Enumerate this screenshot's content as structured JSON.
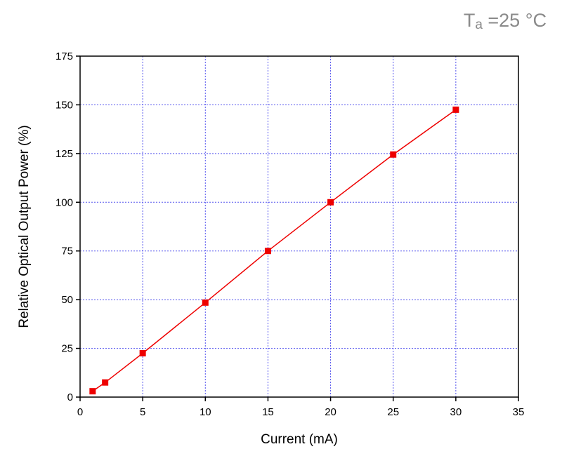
{
  "chart_data": {
    "type": "line",
    "annotation": [
      "T",
      "a",
      " =25 °C"
    ],
    "x_label": "Current (mA)",
    "y_label": "Relative Optical Output Power (%)",
    "x": [
      1,
      2,
      5,
      10,
      15,
      20,
      25,
      30
    ],
    "series": [
      {
        "color": "#ee0000",
        "values": [
          3,
          7.5,
          22.5,
          48.5,
          75,
          100,
          124.5,
          147.5
        ]
      }
    ],
    "xlim": [
      0,
      35
    ],
    "xticks": [
      0,
      5,
      10,
      15,
      20,
      25,
      30,
      35
    ],
    "ylim": [
      0,
      175
    ],
    "yticks": [
      0,
      25,
      50,
      75,
      100,
      125,
      150,
      175
    ],
    "grid": true,
    "grid_color": "#5555ee",
    "annotation_color": "#8a8a8a"
  }
}
